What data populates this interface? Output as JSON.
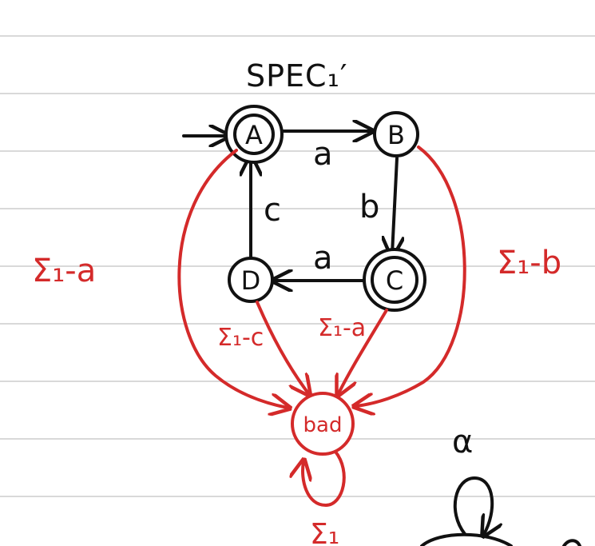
{
  "title": "SPEC₁′",
  "colors": {
    "ink": "#111111",
    "red": "#d42a2a",
    "rule": "#d9d9d9",
    "paper": "#ffffff"
  },
  "states": {
    "A": "A",
    "B": "B",
    "C": "C",
    "D": "D",
    "bad": "bad"
  },
  "transitions": {
    "A_to_B": "a",
    "B_to_C": "b",
    "C_to_D": "a",
    "D_to_A": "c"
  },
  "red_labels": {
    "A_to_bad": "Σ₁-a",
    "B_to_bad": "Σ₁-b",
    "D_to_bad": "Σ₁-c",
    "C_to_bad": "Σ₁-a",
    "bad_self": "Σ₁"
  },
  "partial": {
    "loop_label": "α"
  }
}
